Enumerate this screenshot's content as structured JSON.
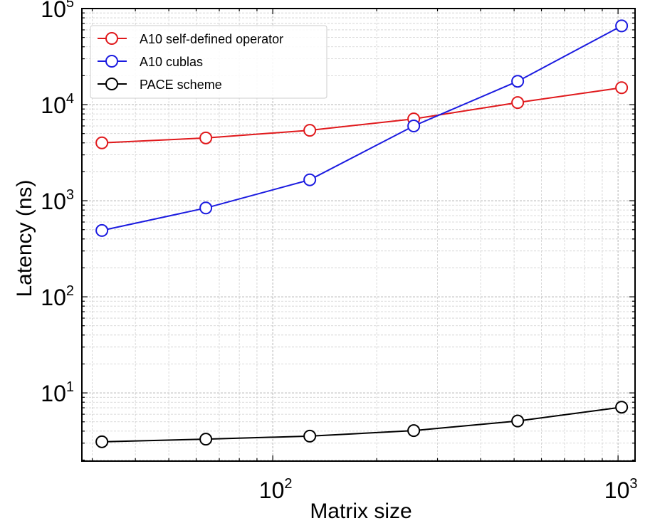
{
  "chart_data": {
    "type": "line",
    "title": "",
    "xlabel": "Matrix size",
    "ylabel": "Latency (ns)",
    "xscale": "log",
    "yscale": "log",
    "xlim": [
      28,
      1120
    ],
    "ylim": [
      1.95,
      100000
    ],
    "grid": true,
    "legend_position": "top-left",
    "x": [
      32,
      64,
      128,
      256,
      512,
      1024
    ],
    "x_ticks": [
      {
        "value": 100,
        "base": "10",
        "exp": "2"
      },
      {
        "value": 1000,
        "base": "10",
        "exp": "3"
      }
    ],
    "y_ticks": [
      {
        "value": 10,
        "base": "10",
        "exp": "1"
      },
      {
        "value": 100,
        "base": "10",
        "exp": "2"
      },
      {
        "value": 1000,
        "base": "10",
        "exp": "3"
      },
      {
        "value": 10000,
        "base": "10",
        "exp": "4"
      },
      {
        "value": 100000,
        "base": "10",
        "exp": "5"
      }
    ],
    "series": [
      {
        "name": "A10 self-defined operator",
        "color": "#e0191c",
        "values": [
          4000,
          4500,
          5400,
          7100,
          10500,
          15000
        ]
      },
      {
        "name": "A10 cublas",
        "color": "#1b1be0",
        "values": [
          490,
          840,
          1650,
          6000,
          17500,
          66000
        ]
      },
      {
        "name": "PACE scheme",
        "color": "#000000",
        "values": [
          3.1,
          3.3,
          3.55,
          4.05,
          5.1,
          7.1
        ]
      }
    ]
  }
}
